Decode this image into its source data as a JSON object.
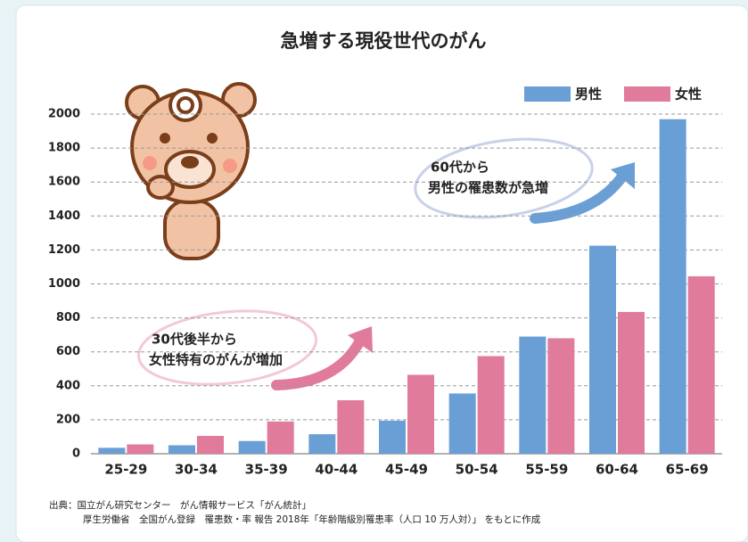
{
  "chart_data": {
    "type": "bar",
    "title": "急増する現役世代のがん",
    "categories": [
      "25-29",
      "30-34",
      "35-39",
      "40-44",
      "45-49",
      "50-54",
      "55-59",
      "60-64",
      "65-69"
    ],
    "series": [
      {
        "name": "男性",
        "color": "#6a9fd6",
        "values": [
          35,
          50,
          75,
          115,
          195,
          355,
          690,
          1225,
          1970
        ]
      },
      {
        "name": "女性",
        "color": "#e07b9b",
        "values": [
          55,
          105,
          190,
          315,
          465,
          575,
          680,
          835,
          1045
        ]
      }
    ],
    "ylim": [
      0,
      2000
    ],
    "yticks": [
      0,
      200,
      400,
      600,
      800,
      1000,
      1200,
      1400,
      1600,
      1800,
      2000
    ],
    "grid": true,
    "legend": "top-right",
    "annotations": [
      {
        "lines": [
          "60代から",
          "男性の罹患数が急増"
        ]
      },
      {
        "lines": [
          "30代後半から",
          "女性特有のがんが増加"
        ]
      }
    ],
    "source": [
      "出典：国立がん研究センター　がん情報サービス「がん統計」",
      "厚生労働省　全国がん登録　罹患数・率 報告 2018年「年齢階級別罹患率（人口 10 万人対）」 をもとに作成"
    ]
  }
}
